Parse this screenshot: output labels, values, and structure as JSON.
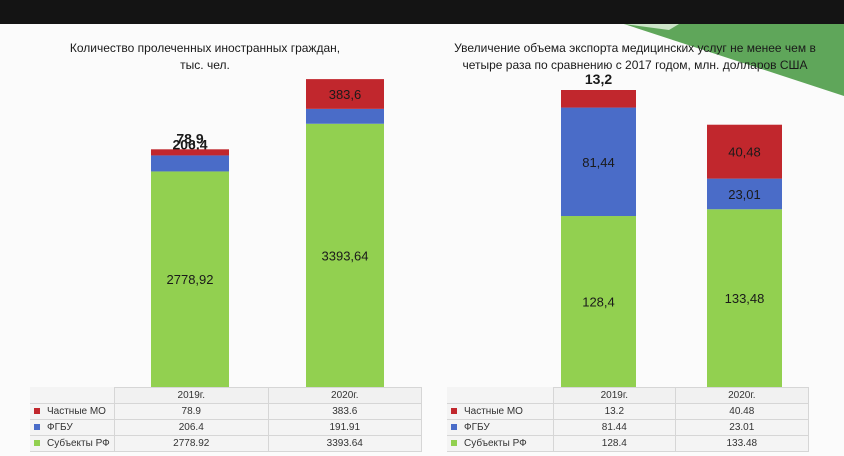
{
  "colors": {
    "chastnye": "#c1272d",
    "fgbu": "#4a6cc8",
    "subekty": "#92d050",
    "accent_green": "#5fa65a"
  },
  "chart_data": [
    {
      "type": "bar",
      "title": "Количество пролеченных иностранных граждан,\nтыс. чел.",
      "categories": [
        "2019г.",
        "2020г."
      ],
      "series": [
        {
          "name": "Частные МО",
          "values": [
            78.9,
            383.6
          ],
          "labels": [
            "78,9",
            "383,6"
          ],
          "table": [
            "78.9",
            "383.6"
          ]
        },
        {
          "name": "ФГБУ",
          "values": [
            206.4,
            191.91
          ],
          "labels": [
            "206,4",
            "191,91"
          ],
          "table": [
            "206.4",
            "191.91"
          ]
        },
        {
          "name": "Субъекты РФ",
          "values": [
            2778.92,
            3393.64
          ],
          "labels": [
            "2778,92",
            "3393,64"
          ],
          "table": [
            "2778.92",
            "3393.64"
          ]
        }
      ]
    },
    {
      "type": "bar",
      "title": "Увеличение объема экспорта медицинских услуг не менее чем в\nчетыре раза по сравнению с 2017 годом, млн. долларов США",
      "categories": [
        "2019г.",
        "2020г."
      ],
      "series": [
        {
          "name": "Частные МО",
          "values": [
            13.2,
            40.48
          ],
          "labels": [
            "13,2",
            "40,48"
          ],
          "table": [
            "13.2",
            "40.48"
          ]
        },
        {
          "name": "ФГБУ",
          "values": [
            81.44,
            23.01
          ],
          "labels": [
            "81,44",
            "23,01"
          ],
          "table": [
            "81.44",
            "23.01"
          ]
        },
        {
          "name": "Субъекты РФ",
          "values": [
            128.4,
            133.48
          ],
          "labels": [
            "128,4",
            "133,48"
          ],
          "table": [
            "128.4",
            "133.48"
          ]
        }
      ]
    }
  ]
}
